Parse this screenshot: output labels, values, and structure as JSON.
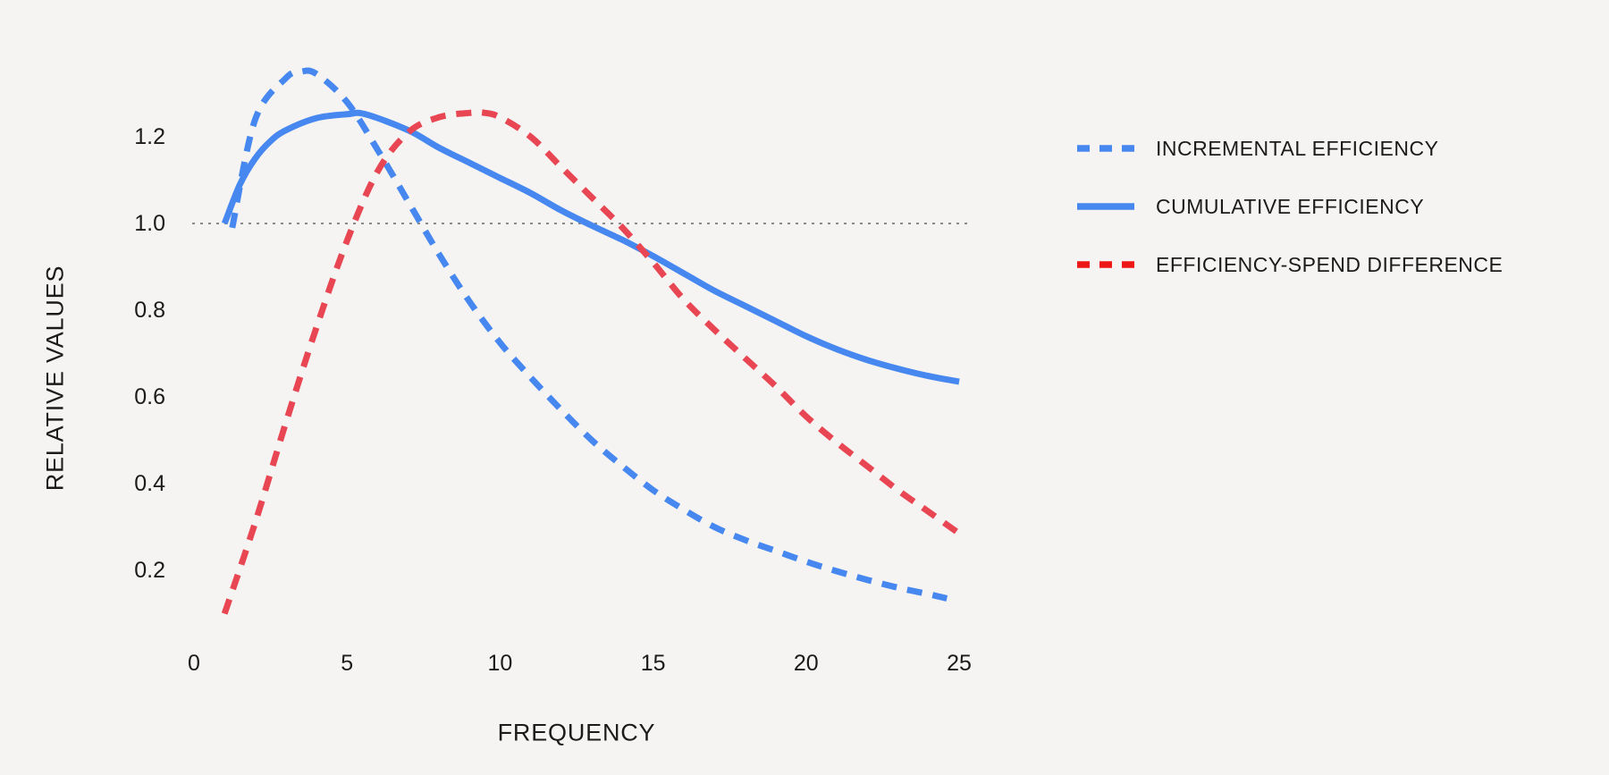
{
  "colors": {
    "background": "#f5f4f2",
    "text": "#1b1b1b",
    "blue": "#4687f0",
    "red_line": "#e94653",
    "red_legend": "#ee1717",
    "reference_line": "#8a8a8a"
  },
  "chart_data": {
    "type": "line",
    "title": "",
    "xlabel": "FREQUENCY",
    "ylabel": "RELATIVE VALUES",
    "xlim": [
      0,
      25
    ],
    "ylim": [
      0,
      1.4
    ],
    "grid": false,
    "legend_position": "right",
    "x_ticks": [
      {
        "label": "0",
        "value": 0
      },
      {
        "label": "5",
        "value": 5
      },
      {
        "label": "10",
        "value": 10
      },
      {
        "label": "15",
        "value": 15
      },
      {
        "label": "20",
        "value": 20
      },
      {
        "label": "25",
        "value": 25
      }
    ],
    "y_ticks": [
      {
        "label": "1.2",
        "value": 1.2
      },
      {
        "label": "1.0",
        "value": 1.0
      },
      {
        "label": "0.8",
        "value": 0.8
      },
      {
        "label": "0.6",
        "value": 0.6
      },
      {
        "label": "0.4",
        "value": 0.4
      },
      {
        "label": "0.2",
        "value": 0.2
      }
    ],
    "reference_line": {
      "value": 1.0,
      "style": "dotted",
      "color": "#8a8a8a"
    },
    "series": [
      {
        "name": "INCREMENTAL EFFICIENCY",
        "color": "#4687f0",
        "legend_color": "#4687f0",
        "dash": "dashed",
        "x": [
          1.25,
          2,
          3,
          3.5,
          4,
          5,
          6,
          7,
          8,
          9,
          10,
          11,
          12,
          13,
          14,
          15,
          16,
          17,
          18,
          19,
          20,
          21,
          22,
          23,
          24,
          24.6
        ],
        "values": [
          0.99,
          1.24,
          1.335,
          1.35,
          1.345,
          1.28,
          1.17,
          1.05,
          0.93,
          0.82,
          0.725,
          0.645,
          0.57,
          0.5,
          0.44,
          0.385,
          0.34,
          0.3,
          0.27,
          0.245,
          0.22,
          0.198,
          0.178,
          0.16,
          0.145,
          0.135
        ]
      },
      {
        "name": "CUMULATIVE EFFICIENCY",
        "color": "#4687f0",
        "legend_color": "#4687f0",
        "dash": "solid",
        "x": [
          1,
          1.5,
          2,
          2.5,
          3,
          4,
          5,
          5.6,
          7,
          8,
          9,
          10,
          11,
          12,
          13,
          14,
          15,
          16,
          17,
          18,
          19,
          20,
          21,
          22,
          23,
          24,
          25
        ],
        "values": [
          1.0,
          1.09,
          1.15,
          1.19,
          1.215,
          1.243,
          1.252,
          1.252,
          1.215,
          1.175,
          1.14,
          1.105,
          1.07,
          1.03,
          0.995,
          0.962,
          0.925,
          0.885,
          0.845,
          0.81,
          0.775,
          0.74,
          0.71,
          0.685,
          0.665,
          0.648,
          0.635
        ]
      },
      {
        "name": "EFFICIENCY-SPEND DIFFERENCE",
        "color": "#e94653",
        "legend_color": "#ee1717",
        "dash": "dashed",
        "x": [
          1,
          2,
          3,
          4,
          5,
          6,
          7,
          8,
          9,
          9.5,
          10,
          11,
          12,
          13,
          14,
          15,
          16,
          17,
          18,
          19,
          20,
          21,
          22,
          23,
          24,
          25
        ],
        "values": [
          0.1,
          0.31,
          0.54,
          0.76,
          0.96,
          1.12,
          1.21,
          1.245,
          1.255,
          1.255,
          1.245,
          1.2,
          1.13,
          1.06,
          0.99,
          0.91,
          0.825,
          0.755,
          0.69,
          0.625,
          0.555,
          0.495,
          0.44,
          0.385,
          0.335,
          0.285
        ]
      }
    ]
  }
}
